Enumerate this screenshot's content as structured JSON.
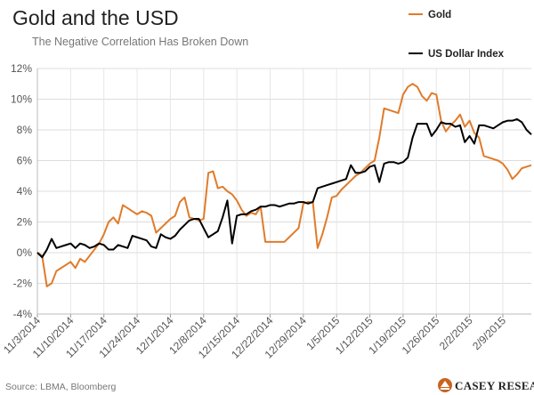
{
  "chart_data": {
    "type": "line",
    "title": "Gold and the USD",
    "subtitle": "The Negative Correlation Has Broken Down",
    "source": "Source: LBMA, Bloomberg",
    "brand": "CASEY RESEARCH",
    "ylim": [
      -4,
      12
    ],
    "yticks": [
      -4,
      -2,
      0,
      2,
      4,
      6,
      8,
      10,
      12
    ],
    "ytick_labels": [
      "-4%",
      "-2%",
      "0%",
      "2%",
      "4%",
      "6%",
      "8%",
      "10%",
      "12%"
    ],
    "xlim": [
      0,
      104
    ],
    "xticks": [
      {
        "x": 0,
        "label": "11/3/2014"
      },
      {
        "x": 7,
        "label": "11/10/2014"
      },
      {
        "x": 14,
        "label": "11/17/2014"
      },
      {
        "x": 21,
        "label": "11/24/2014"
      },
      {
        "x": 28,
        "label": "12/1/2014"
      },
      {
        "x": 35,
        "label": "12/8/2014"
      },
      {
        "x": 42,
        "label": "12/15/2014"
      },
      {
        "x": 49,
        "label": "12/22/2014"
      },
      {
        "x": 56,
        "label": "12/29/2014"
      },
      {
        "x": 63,
        "label": "1/5/2015"
      },
      {
        "x": 70,
        "label": "1/12/2015"
      },
      {
        "x": 77,
        "label": "1/19/2015"
      },
      {
        "x": 84,
        "label": "1/26/2015"
      },
      {
        "x": 91,
        "label": "2/2/2015"
      },
      {
        "x": 98,
        "label": "2/9/2015"
      }
    ],
    "grid": true,
    "legend_position": "top-right",
    "series": [
      {
        "name": "Gold",
        "color": "#e07b2a",
        "x": [
          0,
          1,
          2,
          3,
          4,
          5,
          6,
          7,
          8,
          9,
          10,
          11,
          12,
          13,
          14,
          15,
          16,
          17,
          18,
          19,
          20,
          21,
          22,
          23,
          24,
          25,
          26,
          27,
          28,
          29,
          30,
          31,
          32,
          33,
          34,
          35,
          36,
          37,
          38,
          39,
          40,
          41,
          42,
          43,
          44,
          45,
          46,
          47,
          48,
          49,
          50,
          51,
          52,
          53,
          54,
          55,
          56,
          57,
          58,
          59,
          60,
          61,
          62,
          63,
          64,
          65,
          66,
          67,
          68,
          69,
          70,
          71,
          72,
          73,
          74,
          75,
          76,
          77,
          78,
          79,
          80,
          81,
          82,
          83,
          84,
          85,
          86,
          87,
          88,
          89,
          90,
          91,
          92,
          93,
          94,
          95,
          96,
          97,
          98,
          99,
          100,
          101,
          102,
          103,
          104
        ],
        "values": [
          0.0,
          -0.2,
          -2.2,
          -2.0,
          -1.2,
          -1.0,
          -0.8,
          -0.6,
          -1.0,
          -0.4,
          -0.6,
          -0.2,
          0.2,
          0.6,
          1.2,
          2.0,
          2.3,
          1.9,
          3.1,
          2.9,
          2.7,
          2.5,
          2.7,
          2.6,
          2.4,
          1.3,
          1.6,
          1.9,
          2.2,
          2.4,
          3.3,
          3.6,
          2.3,
          2.2,
          2.1,
          2.2,
          5.2,
          5.3,
          4.2,
          4.3,
          4.0,
          3.8,
          3.4,
          2.8,
          2.4,
          2.6,
          2.5,
          3.0,
          0.7,
          0.7,
          0.7,
          0.7,
          0.7,
          1.0,
          1.3,
          1.6,
          3.2,
          3.3,
          3.3,
          0.3,
          1.2,
          2.3,
          3.6,
          3.7,
          4.1,
          4.4,
          4.7,
          5.0,
          5.2,
          5.5,
          5.8,
          6.0,
          7.5,
          9.4,
          9.3,
          9.2,
          9.1,
          10.3,
          10.8,
          11.0,
          10.8,
          10.2,
          9.9,
          10.4,
          10.3,
          8.6,
          7.9,
          8.3,
          8.6,
          9.0,
          8.2,
          8.6,
          7.8,
          7.5,
          6.3,
          6.2,
          6.1,
          6.0,
          5.8,
          5.4,
          4.8,
          5.1,
          5.5,
          5.6,
          5.7
        ]
      },
      {
        "name": "US Dollar Index",
        "color": "#000000",
        "x": [
          0,
          1,
          2,
          3,
          4,
          5,
          6,
          7,
          8,
          9,
          10,
          11,
          12,
          13,
          14,
          15,
          16,
          17,
          18,
          19,
          20,
          21,
          22,
          23,
          24,
          25,
          26,
          27,
          28,
          29,
          30,
          31,
          32,
          33,
          34,
          35,
          36,
          37,
          38,
          39,
          40,
          41,
          42,
          43,
          44,
          45,
          46,
          47,
          48,
          49,
          50,
          51,
          52,
          53,
          54,
          55,
          56,
          57,
          58,
          59,
          60,
          61,
          62,
          63,
          64,
          65,
          66,
          67,
          68,
          69,
          70,
          71,
          72,
          73,
          74,
          75,
          76,
          77,
          78,
          79,
          80,
          81,
          82,
          83,
          84,
          85,
          86,
          87,
          88,
          89,
          90,
          91,
          92,
          93,
          94,
          95,
          96,
          97,
          98,
          99,
          100,
          101,
          102,
          103,
          104
        ],
        "values": [
          0.0,
          -0.3,
          0.2,
          0.9,
          0.3,
          0.4,
          0.5,
          0.6,
          0.3,
          0.6,
          0.5,
          0.3,
          0.4,
          0.6,
          0.5,
          0.2,
          0.2,
          0.5,
          0.4,
          0.3,
          1.1,
          1.0,
          0.9,
          0.8,
          0.4,
          0.3,
          1.2,
          1.0,
          0.9,
          1.1,
          1.5,
          1.8,
          2.1,
          2.2,
          2.2,
          1.6,
          1.0,
          1.2,
          1.4,
          2.3,
          3.4,
          0.6,
          2.4,
          2.5,
          2.5,
          2.7,
          2.8,
          3.0,
          3.0,
          3.1,
          3.1,
          3.0,
          3.1,
          3.2,
          3.2,
          3.3,
          3.3,
          3.2,
          3.3,
          4.2,
          4.3,
          4.4,
          4.5,
          4.6,
          4.7,
          4.8,
          5.7,
          5.2,
          5.2,
          5.3,
          5.6,
          5.7,
          4.6,
          5.8,
          5.9,
          5.9,
          5.8,
          5.9,
          6.2,
          7.5,
          8.4,
          8.4,
          8.4,
          7.6,
          8.0,
          8.5,
          8.4,
          8.4,
          8.2,
          8.3,
          7.2,
          7.6,
          7.1,
          8.3,
          8.3,
          8.2,
          8.1,
          8.3,
          8.5,
          8.6,
          8.6,
          8.7,
          8.5,
          8.0,
          7.7
        ]
      }
    ]
  }
}
